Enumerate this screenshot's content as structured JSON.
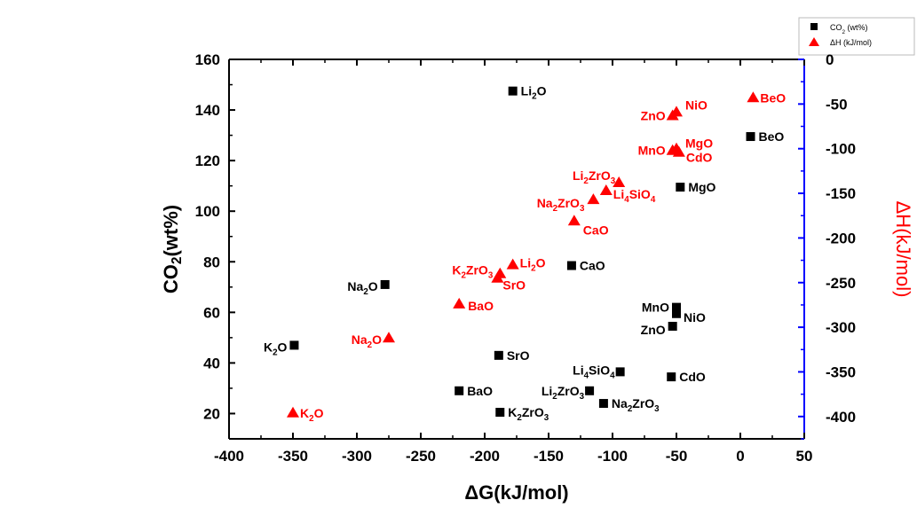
{
  "chart_data": {
    "type": "scatter",
    "xlabel": "ΔG(kJ/mol)",
    "ylabel_left": "CO₂(wt%)",
    "ylabel_right": "ΔH(kJ/mol)",
    "xlim": [
      -400,
      50
    ],
    "ylim_left": [
      10,
      160
    ],
    "ylim_right": [
      -425,
      0
    ],
    "x_ticks": [
      "-400",
      "-350",
      "-300",
      "-250",
      "-200",
      "-150",
      "-100",
      "-50",
      "0",
      "50"
    ],
    "y_left_ticks": [
      "20",
      "40",
      "60",
      "80",
      "100",
      "120",
      "140",
      "160"
    ],
    "y_right_ticks": [
      "0",
      "-50",
      "-100",
      "-150",
      "-200",
      "-250",
      "-300",
      "-350",
      "-400"
    ],
    "grid": false,
    "legend_position": "top-right",
    "colors": {
      "co2": "#000000",
      "dh": "#ff0000",
      "right_axis": "#0000ff"
    },
    "series": [
      {
        "name": "CO₂ (wt%)",
        "axis": "left",
        "marker": "square",
        "points": [
          {
            "x": -178,
            "y": 147.5,
            "label": "Li₂O"
          },
          {
            "x": 8,
            "y": 129.5,
            "label": "BeO"
          },
          {
            "x": -47,
            "y": 109.5,
            "label": "MgO"
          },
          {
            "x": -132,
            "y": 78.5,
            "label": "CaO"
          },
          {
            "x": -278,
            "y": 71,
            "label": "Na₂O"
          },
          {
            "x": -50,
            "y": 62,
            "label": "MnO"
          },
          {
            "x": -50,
            "y": 59.5,
            "label": "NiO"
          },
          {
            "x": -53,
            "y": 54.5,
            "label": "ZnO"
          },
          {
            "x": -349,
            "y": 47,
            "label": "K₂O"
          },
          {
            "x": -189,
            "y": 43,
            "label": "SrO"
          },
          {
            "x": -94,
            "y": 36.5,
            "label": "Li₄SiO₄"
          },
          {
            "x": -54,
            "y": 34.5,
            "label": "CdO"
          },
          {
            "x": -220,
            "y": 29,
            "label": "BaO"
          },
          {
            "x": -118,
            "y": 29,
            "label": "Li₂ZrO₃"
          },
          {
            "x": -107,
            "y": 24,
            "label": "Na₂ZrO₃"
          },
          {
            "x": -188,
            "y": 20.5,
            "label": "K₂ZrO₃"
          }
        ]
      },
      {
        "name": "ΔH (kJ/mol)",
        "axis": "right",
        "marker": "triangle",
        "points": [
          {
            "x": 10,
            "y": -43,
            "label": "BeO"
          },
          {
            "x": -50,
            "y": -59,
            "label": "NiO"
          },
          {
            "x": -53,
            "y": -63,
            "label": "ZnO"
          },
          {
            "x": -50,
            "y": -100,
            "label": "MgO"
          },
          {
            "x": -53,
            "y": -102,
            "label": "MnO"
          },
          {
            "x": -48,
            "y": -104,
            "label": "CdO"
          },
          {
            "x": -95,
            "y": -138,
            "label": "Li₂ZrO₃"
          },
          {
            "x": -105,
            "y": -147,
            "label": "Li₄SiO₄"
          },
          {
            "x": -115,
            "y": -157,
            "label": "Na₂ZrO₃"
          },
          {
            "x": -130,
            "y": -181,
            "label": "CaO"
          },
          {
            "x": -178,
            "y": -230,
            "label": "Li₂O"
          },
          {
            "x": -188,
            "y": -240,
            "label": "K₂ZrO₃"
          },
          {
            "x": -190,
            "y": -245,
            "label": "SrO"
          },
          {
            "x": -220,
            "y": -274,
            "label": "BaO"
          },
          {
            "x": -275,
            "y": -312,
            "label": "Na₂O"
          },
          {
            "x": -350,
            "y": -396,
            "label": "K₂O"
          }
        ]
      }
    ]
  }
}
